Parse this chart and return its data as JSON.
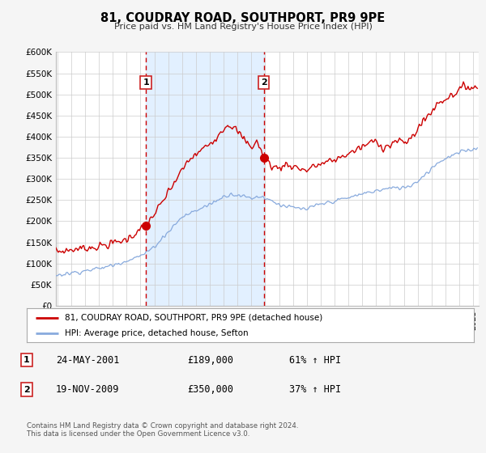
{
  "title": "81, COUDRAY ROAD, SOUTHPORT, PR9 9PE",
  "subtitle": "Price paid vs. HM Land Registry's House Price Index (HPI)",
  "background_color": "#f5f5f5",
  "plot_bg_color": "#ffffff",
  "grid_color": "#cccccc",
  "red_line_color": "#cc0000",
  "blue_line_color": "#88aadd",
  "shade_color": "#ddeeff",
  "marker1_date": 2001.39,
  "marker1_value": 189000,
  "marker2_date": 2009.89,
  "marker2_value": 350000,
  "shade_x1": 2001.39,
  "shade_x2": 2009.89,
  "ylim": [
    0,
    600000
  ],
  "yticks": [
    0,
    50000,
    100000,
    150000,
    200000,
    250000,
    300000,
    350000,
    400000,
    450000,
    500000,
    550000,
    600000
  ],
  "ytick_labels": [
    "£0",
    "£50K",
    "£100K",
    "£150K",
    "£200K",
    "£250K",
    "£300K",
    "£350K",
    "£400K",
    "£450K",
    "£500K",
    "£550K",
    "£600K"
  ],
  "xlim_start": 1994.9,
  "xlim_end": 2025.4,
  "legend_label_red": "81, COUDRAY ROAD, SOUTHPORT, PR9 9PE (detached house)",
  "legend_label_blue": "HPI: Average price, detached house, Sefton",
  "footnote": "Contains HM Land Registry data © Crown copyright and database right 2024.\nThis data is licensed under the Open Government Licence v3.0.",
  "table_rows": [
    {
      "num": "1",
      "date": "24-MAY-2001",
      "price": "£189,000",
      "hpi": "61% ↑ HPI"
    },
    {
      "num": "2",
      "date": "19-NOV-2009",
      "price": "£350,000",
      "hpi": "37% ↑ HPI"
    }
  ]
}
